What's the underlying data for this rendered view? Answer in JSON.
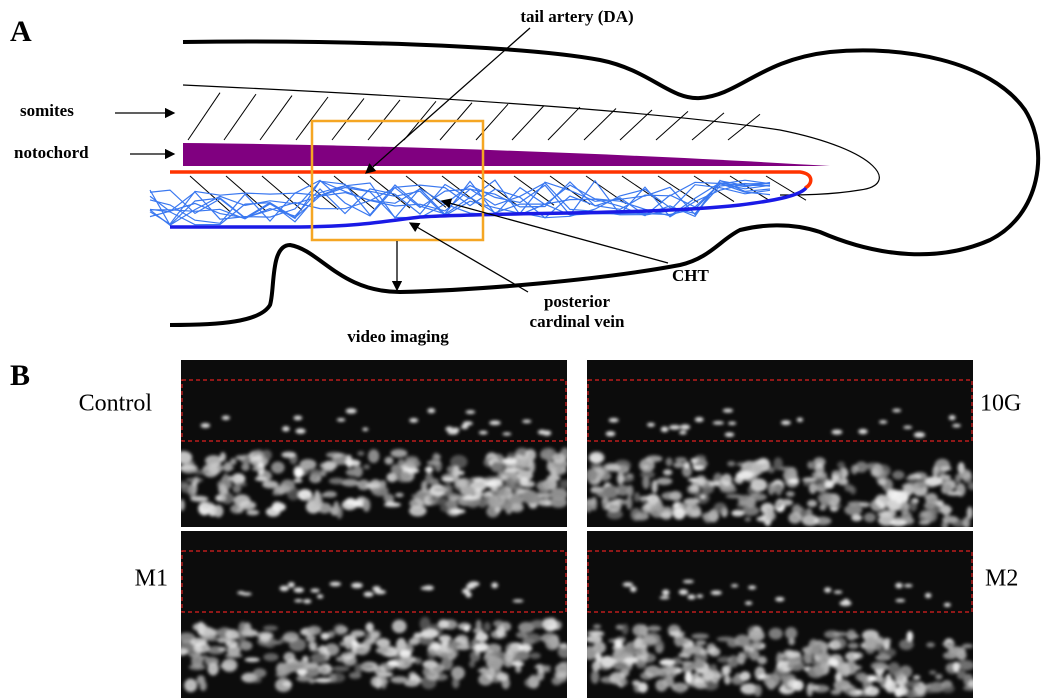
{
  "panel_a": {
    "label": "A",
    "annotations": {
      "tail_artery": "tail artery (DA)",
      "somites": "somites",
      "notochord": "notochord",
      "cht": "CHT",
      "vein": [
        "posterior",
        "cardinal vein"
      ],
      "video": "video imaging"
    }
  },
  "panel_b": {
    "label": "B",
    "images": [
      {
        "label": "Control"
      },
      {
        "label": "10G"
      },
      {
        "label": "M1"
      },
      {
        "label": "M2"
      }
    ]
  }
}
